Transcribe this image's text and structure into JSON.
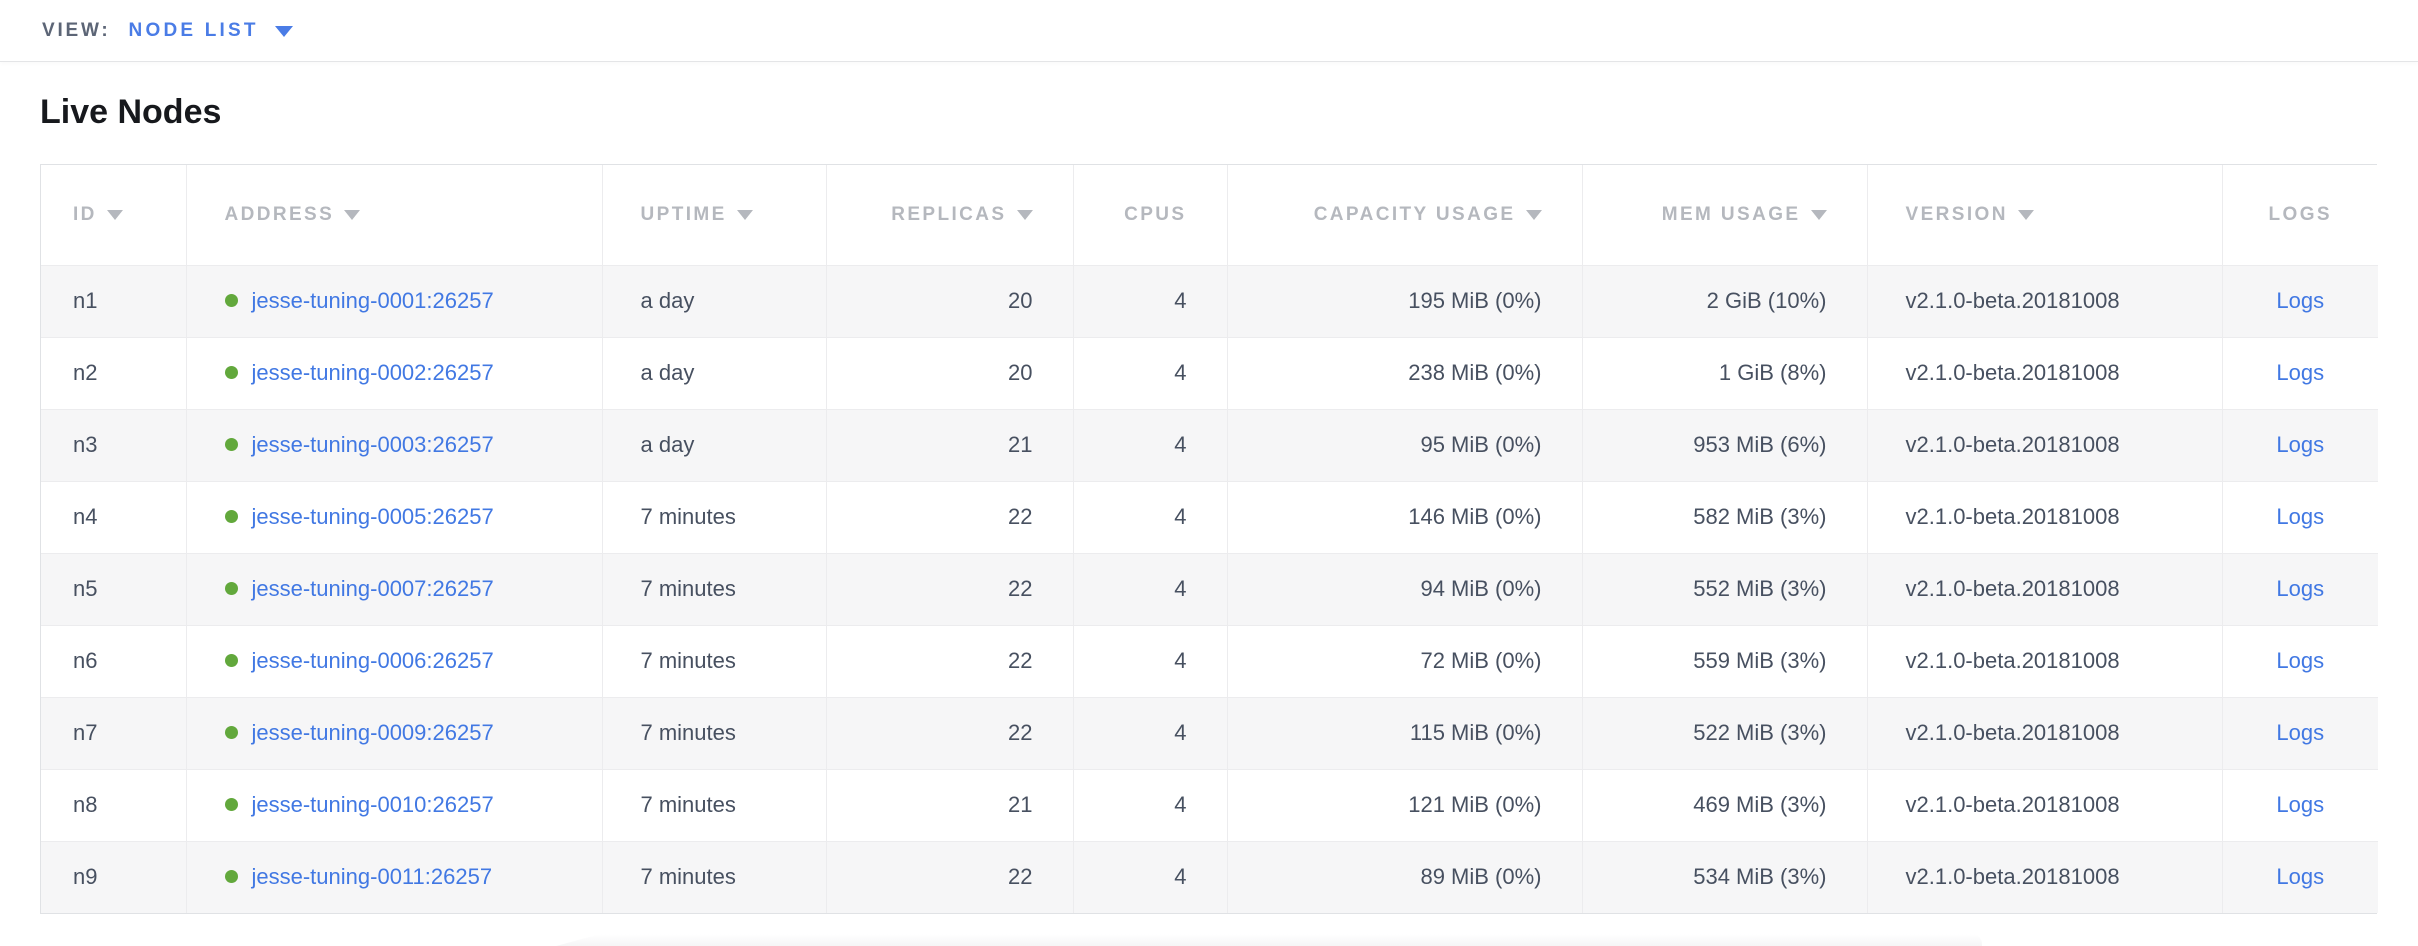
{
  "view_bar": {
    "label": "VIEW:",
    "selected": "NODE LIST"
  },
  "page": {
    "title": "Live Nodes"
  },
  "colors": {
    "accent_blue": "#4178e3",
    "live_green": "#62a83c",
    "header_gray": "#b5b8be",
    "cell_text": "#475060"
  },
  "table": {
    "columns": [
      {
        "key": "id",
        "label": "ID",
        "sortable": true
      },
      {
        "key": "address",
        "label": "ADDRESS",
        "sortable": true
      },
      {
        "key": "uptime",
        "label": "UPTIME",
        "sortable": true
      },
      {
        "key": "replicas",
        "label": "REPLICAS",
        "sortable": true
      },
      {
        "key": "cpus",
        "label": "CPUS",
        "sortable": false
      },
      {
        "key": "capacity",
        "label": "CAPACITY USAGE",
        "sortable": true
      },
      {
        "key": "mem",
        "label": "MEM USAGE",
        "sortable": true
      },
      {
        "key": "version",
        "label": "VERSION",
        "sortable": true
      },
      {
        "key": "logs",
        "label": "LOGS",
        "sortable": false
      }
    ],
    "rows": [
      {
        "id": "n1",
        "address": "jesse-tuning-0001:26257",
        "status": "live",
        "uptime": "a day",
        "replicas": "20",
        "cpus": "4",
        "capacity": "195 MiB (0%)",
        "mem": "2 GiB (10%)",
        "version": "v2.1.0-beta.20181008",
        "logs": "Logs"
      },
      {
        "id": "n2",
        "address": "jesse-tuning-0002:26257",
        "status": "live",
        "uptime": "a day",
        "replicas": "20",
        "cpus": "4",
        "capacity": "238 MiB (0%)",
        "mem": "1 GiB (8%)",
        "version": "v2.1.0-beta.20181008",
        "logs": "Logs"
      },
      {
        "id": "n3",
        "address": "jesse-tuning-0003:26257",
        "status": "live",
        "uptime": "a day",
        "replicas": "21",
        "cpus": "4",
        "capacity": "95 MiB (0%)",
        "mem": "953 MiB (6%)",
        "version": "v2.1.0-beta.20181008",
        "logs": "Logs"
      },
      {
        "id": "n4",
        "address": "jesse-tuning-0005:26257",
        "status": "live",
        "uptime": "7 minutes",
        "replicas": "22",
        "cpus": "4",
        "capacity": "146 MiB (0%)",
        "mem": "582 MiB (3%)",
        "version": "v2.1.0-beta.20181008",
        "logs": "Logs"
      },
      {
        "id": "n5",
        "address": "jesse-tuning-0007:26257",
        "status": "live",
        "uptime": "7 minutes",
        "replicas": "22",
        "cpus": "4",
        "capacity": "94 MiB (0%)",
        "mem": "552 MiB (3%)",
        "version": "v2.1.0-beta.20181008",
        "logs": "Logs"
      },
      {
        "id": "n6",
        "address": "jesse-tuning-0006:26257",
        "status": "live",
        "uptime": "7 minutes",
        "replicas": "22",
        "cpus": "4",
        "capacity": "72 MiB (0%)",
        "mem": "559 MiB (3%)",
        "version": "v2.1.0-beta.20181008",
        "logs": "Logs"
      },
      {
        "id": "n7",
        "address": "jesse-tuning-0009:26257",
        "status": "live",
        "uptime": "7 minutes",
        "replicas": "22",
        "cpus": "4",
        "capacity": "115 MiB (0%)",
        "mem": "522 MiB (3%)",
        "version": "v2.1.0-beta.20181008",
        "logs": "Logs"
      },
      {
        "id": "n8",
        "address": "jesse-tuning-0010:26257",
        "status": "live",
        "uptime": "7 minutes",
        "replicas": "21",
        "cpus": "4",
        "capacity": "121 MiB (0%)",
        "mem": "469 MiB (3%)",
        "version": "v2.1.0-beta.20181008",
        "logs": "Logs"
      },
      {
        "id": "n9",
        "address": "jesse-tuning-0011:26257",
        "status": "live",
        "uptime": "7 minutes",
        "replicas": "22",
        "cpus": "4",
        "capacity": "89 MiB (0%)",
        "mem": "534 MiB (3%)",
        "version": "v2.1.0-beta.20181008",
        "logs": "Logs"
      }
    ]
  }
}
